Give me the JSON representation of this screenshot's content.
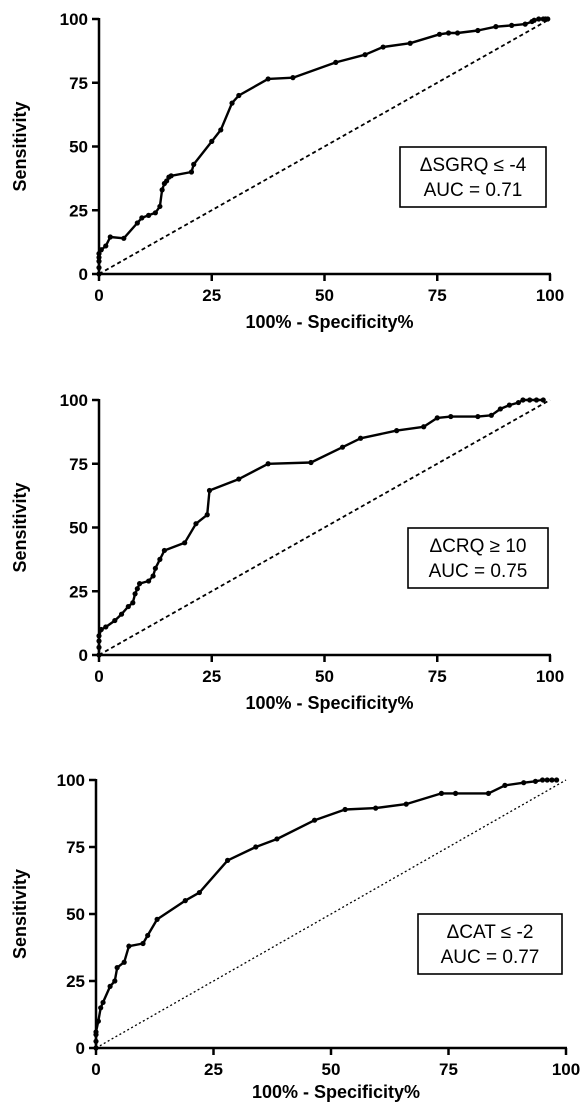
{
  "chart_data": [
    {
      "type": "line",
      "xlabel": "100%  - Specificity%",
      "ylabel": "Sensitivity",
      "xlim": [
        0,
        100
      ],
      "ylim": [
        0,
        100
      ],
      "xticks": [
        "0",
        "25",
        "50",
        "75",
        "100"
      ],
      "yticks": [
        "0",
        "25",
        "50",
        "75",
        "100"
      ],
      "legend": [
        "ΔSGRQ ≤ -4",
        "AUC = 0.71"
      ],
      "legend_position": "right-middle",
      "series": [
        {
          "x": [
            0,
            0,
            0,
            0,
            0,
            0.5,
            1.5,
            2.5,
            5.5,
            8.5,
            9.5,
            11,
            12.5,
            13.5,
            14,
            14.5,
            15,
            15.5,
            16,
            20.5,
            21,
            25,
            27,
            29.5,
            31,
            37.5,
            43,
            52.5,
            59,
            63,
            69,
            75.5,
            77.5,
            79.5,
            84,
            88,
            91.5,
            94.5,
            96,
            96.5,
            97.5,
            98.5,
            99,
            99.5
          ],
          "y": [
            0,
            2.5,
            5,
            6.5,
            8,
            9.5,
            11,
            14.5,
            14,
            20,
            22,
            23,
            24,
            26.5,
            33,
            35.5,
            36.5,
            38,
            38.5,
            40,
            43,
            52,
            56.5,
            67,
            70,
            76.5,
            77,
            83,
            86,
            89,
            90.5,
            94,
            94.5,
            94.5,
            95.5,
            97,
            97.5,
            98,
            99,
            99.5,
            100,
            100,
            100,
            100
          ]
        },
        {
          "name": "reference",
          "x": [
            0,
            100
          ],
          "y": [
            0,
            100
          ],
          "style": "dashed"
        }
      ]
    },
    {
      "type": "line",
      "xlabel": "100%  - Specificity%",
      "ylabel": "Sensitivity",
      "xlim": [
        0,
        100
      ],
      "ylim": [
        0,
        100
      ],
      "xticks": [
        "0",
        "25",
        "50",
        "75",
        "100"
      ],
      "yticks": [
        "0",
        "25",
        "50",
        "75",
        "100"
      ],
      "legend": [
        "ΔCRQ ≥ 10",
        "AUC = 0.75"
      ],
      "legend_position": "right-middle",
      "series": [
        {
          "x": [
            0,
            0,
            0,
            0,
            0.5,
            1.5,
            3.5,
            5,
            6.5,
            7.5,
            8,
            8.5,
            9,
            11,
            12,
            12.5,
            13.5,
            14.5,
            19,
            21.5,
            24,
            24.5,
            31,
            37.5,
            47,
            54,
            58,
            66,
            72,
            75,
            78,
            84,
            87,
            89,
            91,
            93,
            94,
            95.5,
            97,
            98.5
          ],
          "y": [
            0,
            3,
            5.5,
            7.5,
            10,
            11,
            13.5,
            16,
            19,
            20.5,
            24,
            26,
            28,
            29,
            31,
            34,
            37.5,
            41,
            44,
            51.5,
            55,
            64.5,
            69,
            75,
            75.5,
            81.5,
            85,
            88,
            89.5,
            93,
            93.5,
            93.5,
            94,
            96.5,
            98,
            99,
            100,
            100,
            100,
            100
          ]
        },
        {
          "name": "reference",
          "x": [
            0,
            100
          ],
          "y": [
            0,
            100
          ],
          "style": "dashed"
        }
      ]
    },
    {
      "type": "line",
      "xlabel": "100% - Specificity%",
      "ylabel": "Sensitivity",
      "xlim": [
        0,
        100
      ],
      "ylim": [
        0,
        100
      ],
      "xticks": [
        "0",
        "25",
        "50",
        "75",
        "100"
      ],
      "yticks": [
        "0",
        "25",
        "50",
        "75",
        "100"
      ],
      "legend": [
        "ΔCAT ≤ -2",
        "AUC = 0.77"
      ],
      "legend_position": "right-middle",
      "series": [
        {
          "x": [
            0,
            0,
            0,
            0,
            0.5,
            1,
            1.5,
            3,
            4,
            4.5,
            6,
            7,
            10,
            11,
            13,
            19,
            22,
            28,
            34,
            38.5,
            46.5,
            53,
            59.5,
            66,
            73.5,
            76.5,
            83.5,
            87,
            91,
            93.5,
            95,
            96,
            97,
            98
          ],
          "y": [
            0,
            2.5,
            5,
            6,
            10,
            15,
            17,
            23,
            25,
            30,
            32,
            38,
            39,
            42,
            48,
            55,
            58,
            70,
            75,
            78,
            85,
            89,
            89.5,
            91,
            95,
            95,
            95,
            98,
            99,
            99.5,
            100,
            100,
            100,
            100
          ]
        },
        {
          "name": "reference",
          "x": [
            0,
            100
          ],
          "y": [
            0,
            100
          ],
          "style": "dotted"
        }
      ]
    }
  ]
}
